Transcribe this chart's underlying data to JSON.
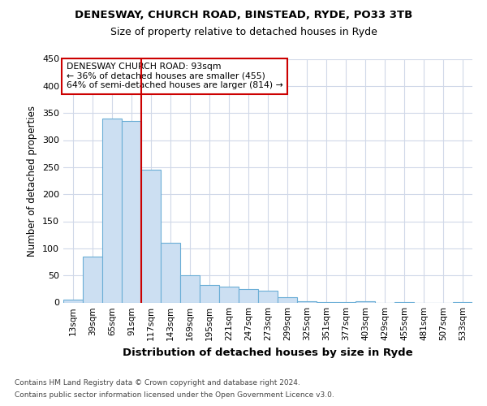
{
  "title1": "DENESWAY, CHURCH ROAD, BINSTEAD, RYDE, PO33 3TB",
  "title2": "Size of property relative to detached houses in Ryde",
  "xlabel": "Distribution of detached houses by size in Ryde",
  "ylabel": "Number of detached properties",
  "footnote1": "Contains HM Land Registry data © Crown copyright and database right 2024.",
  "footnote2": "Contains public sector information licensed under the Open Government Licence v3.0.",
  "annotation_line1": "DENESWAY CHURCH ROAD: 93sqm",
  "annotation_line2": "← 36% of detached houses are smaller (455)",
  "annotation_line3": "64% of semi-detached houses are larger (814) →",
  "bar_categories": [
    "13sqm",
    "39sqm",
    "65sqm",
    "91sqm",
    "117sqm",
    "143sqm",
    "169sqm",
    "195sqm",
    "221sqm",
    "247sqm",
    "273sqm",
    "299sqm",
    "325sqm",
    "351sqm",
    "377sqm",
    "403sqm",
    "429sqm",
    "455sqm",
    "481sqm",
    "507sqm",
    "533sqm"
  ],
  "bar_values": [
    5,
    85,
    340,
    335,
    245,
    110,
    50,
    33,
    30,
    25,
    22,
    10,
    3,
    1,
    1,
    3,
    0,
    1,
    0,
    0,
    1
  ],
  "bar_color": "#ccdff2",
  "bar_edge_color": "#6baed6",
  "vline_color": "#cc0000",
  "annotation_box_color": "#cc0000",
  "grid_color": "#d0d8e8",
  "background_color": "#ffffff",
  "ylim": [
    0,
    450
  ],
  "yticks": [
    0,
    50,
    100,
    150,
    200,
    250,
    300,
    350,
    400,
    450
  ],
  "vline_pos": 3.5
}
